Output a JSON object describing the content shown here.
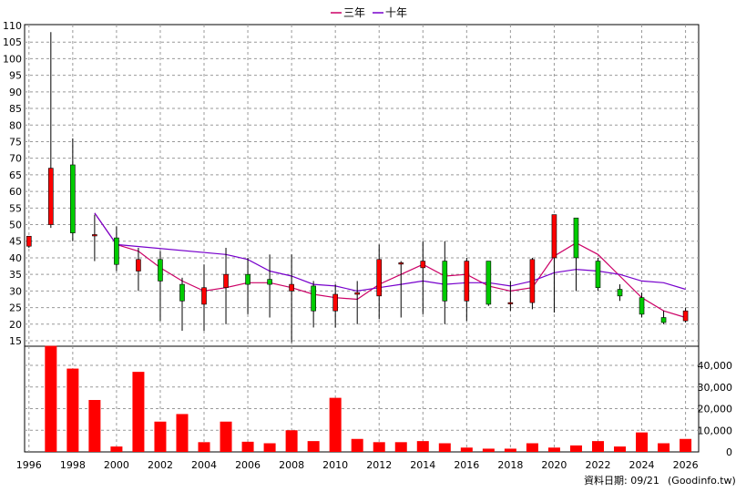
{
  "chart_data": {
    "type": "candlestick",
    "legend": {
      "placement": "top-center",
      "items": [
        {
          "label": "三年",
          "color": "#cc0066"
        },
        {
          "label": "十年",
          "color": "#7700cc"
        }
      ]
    },
    "x_axis": {
      "range": [
        1995.8,
        2026.6
      ],
      "ticks": [
        "1996",
        "1998",
        "2000",
        "2002",
        "2004",
        "2006",
        "2008",
        "2010",
        "2012",
        "2014",
        "2016",
        "2018",
        "2020",
        "2022",
        "2024",
        "2026"
      ]
    },
    "price_axis": {
      "range": [
        13,
        110
      ],
      "ticks": [
        "110",
        "105",
        "100",
        "95",
        "90",
        "85",
        "80",
        "75",
        "70",
        "65",
        "60",
        "55",
        "50",
        "45",
        "40",
        "35",
        "30",
        "25",
        "20",
        "15"
      ]
    },
    "volume_axis": {
      "range": [
        0,
        50000
      ],
      "ticks": [
        "40,000",
        "30,000",
        "20,000",
        "10,000",
        "0"
      ]
    },
    "grid": true,
    "up_color": "#ff0000",
    "down_color": "#00cc00",
    "candles": [
      {
        "year": 1996,
        "open": 43.5,
        "high": 46.5,
        "low": 43,
        "close": 46.5
      },
      {
        "year": 1997,
        "open": 50,
        "high": 108,
        "low": 49,
        "close": 67
      },
      {
        "year": 1998,
        "open": 68,
        "high": 76,
        "low": 45,
        "close": 47.5
      },
      {
        "year": 1999,
        "open": 47,
        "high": 53,
        "low": 39,
        "close": 47
      },
      {
        "year": 2000,
        "open": 46,
        "high": 49.5,
        "low": 36,
        "close": 38
      },
      {
        "year": 2001,
        "open": 36,
        "high": 43,
        "low": 30,
        "close": 39.5
      },
      {
        "year": 2002,
        "open": 39.5,
        "high": 42,
        "low": 21,
        "close": 33
      },
      {
        "year": 2003,
        "open": 32,
        "high": 34,
        "low": 18,
        "close": 27
      },
      {
        "year": 2004,
        "open": 26,
        "high": 38,
        "low": 18,
        "close": 31
      },
      {
        "year": 2005,
        "open": 31,
        "high": 43,
        "low": 20,
        "close": 35
      },
      {
        "year": 2006,
        "open": 35,
        "high": 40,
        "low": 23,
        "close": 32
      },
      {
        "year": 2007,
        "open": 33.5,
        "high": 41,
        "low": 22,
        "close": 32
      },
      {
        "year": 2008,
        "open": 30,
        "high": 41,
        "low": 14.5,
        "close": 32
      },
      {
        "year": 2009,
        "open": 31.5,
        "high": 33,
        "low": 19,
        "close": 24
      },
      {
        "year": 2010,
        "open": 24,
        "high": 32,
        "low": 19,
        "close": 29
      },
      {
        "year": 2011,
        "open": 29,
        "high": 33,
        "low": 20,
        "close": 29.5
      },
      {
        "year": 2012,
        "open": 28.5,
        "high": 44,
        "low": 21.5,
        "close": 39.5
      },
      {
        "year": 2013,
        "open": 38.5,
        "high": 39,
        "low": 22,
        "close": 38.5
      },
      {
        "year": 2014,
        "open": 37,
        "high": 45,
        "low": 23,
        "close": 39
      },
      {
        "year": 2015,
        "open": 39,
        "high": 45,
        "low": 20,
        "close": 27
      },
      {
        "year": 2016,
        "open": 27,
        "high": 40,
        "low": 21,
        "close": 39
      },
      {
        "year": 2017,
        "open": 39,
        "high": 39,
        "low": 25.5,
        "close": 26
      },
      {
        "year": 2018,
        "open": 26.5,
        "high": 33,
        "low": 24,
        "close": 26.5
      },
      {
        "year": 2019,
        "open": 26.5,
        "high": 40,
        "low": 24.5,
        "close": 39.5
      },
      {
        "year": 2020,
        "open": 40,
        "high": 53,
        "low": 23.5,
        "close": 53
      },
      {
        "year": 2021,
        "open": 52,
        "high": 52,
        "low": 30,
        "close": 40
      },
      {
        "year": 2022,
        "open": 39,
        "high": 40,
        "low": 30,
        "close": 31
      },
      {
        "year": 2023,
        "open": 30.5,
        "high": 32,
        "low": 27,
        "close": 28.5
      },
      {
        "year": 2024,
        "open": 28,
        "high": 29.5,
        "low": 22,
        "close": 23
      },
      {
        "year": 2025,
        "open": 22,
        "high": 24,
        "low": 20,
        "close": 20.5
      },
      {
        "year": 2026,
        "open": 21,
        "high": 25,
        "low": 20.5,
        "close": 24
      }
    ],
    "volume": [
      {
        "year": 1996,
        "value": 0
      },
      {
        "year": 1997,
        "value": 49000
      },
      {
        "year": 1998,
        "value": 38500
      },
      {
        "year": 1999,
        "value": 24000
      },
      {
        "year": 2000,
        "value": 2500
      },
      {
        "year": 2001,
        "value": 37000
      },
      {
        "year": 2002,
        "value": 14000
      },
      {
        "year": 2003,
        "value": 17500
      },
      {
        "year": 2004,
        "value": 4500
      },
      {
        "year": 2005,
        "value": 14000
      },
      {
        "year": 2006,
        "value": 4700
      },
      {
        "year": 2007,
        "value": 4000
      },
      {
        "year": 2008,
        "value": 10000
      },
      {
        "year": 2009,
        "value": 5000
      },
      {
        "year": 2010,
        "value": 25000
      },
      {
        "year": 2011,
        "value": 6000
      },
      {
        "year": 2012,
        "value": 4500
      },
      {
        "year": 2013,
        "value": 4500
      },
      {
        "year": 2014,
        "value": 5000
      },
      {
        "year": 2015,
        "value": 4000
      },
      {
        "year": 2016,
        "value": 2000
      },
      {
        "year": 2017,
        "value": 1500
      },
      {
        "year": 2018,
        "value": 1500
      },
      {
        "year": 2019,
        "value": 4000
      },
      {
        "year": 2020,
        "value": 2000
      },
      {
        "year": 2021,
        "value": 3000
      },
      {
        "year": 2022,
        "value": 5000
      },
      {
        "year": 2023,
        "value": 2500
      },
      {
        "year": 2024,
        "value": 9000
      },
      {
        "year": 2025,
        "value": 4000
      },
      {
        "year": 2026,
        "value": 6000
      }
    ],
    "series": [
      {
        "name": "三年",
        "color": "#cc0066",
        "points": [
          [
            1999,
            53.5
          ],
          [
            2000,
            44
          ],
          [
            2001,
            42
          ],
          [
            2002,
            37
          ],
          [
            2003,
            33
          ],
          [
            2004,
            30
          ],
          [
            2005,
            31
          ],
          [
            2006,
            32.5
          ],
          [
            2007,
            32.5
          ],
          [
            2008,
            31
          ],
          [
            2009,
            29
          ],
          [
            2010,
            28
          ],
          [
            2011,
            27.5
          ],
          [
            2012,
            32
          ],
          [
            2013,
            35
          ],
          [
            2014,
            38
          ],
          [
            2015,
            34.5
          ],
          [
            2016,
            35
          ],
          [
            2017,
            31.5
          ],
          [
            2018,
            30
          ],
          [
            2019,
            31
          ],
          [
            2020,
            40.5
          ],
          [
            2021,
            44.5
          ],
          [
            2022,
            41
          ],
          [
            2023,
            34.5
          ],
          [
            2024,
            28
          ],
          [
            2025,
            24
          ],
          [
            2026,
            22
          ]
        ]
      },
      {
        "name": "十年",
        "color": "#7700cc",
        "points": [
          [
            1999,
            53.5
          ],
          [
            2000,
            44
          ],
          [
            2005,
            41
          ],
          [
            2006,
            39.5
          ],
          [
            2007,
            36
          ],
          [
            2008,
            34.5
          ],
          [
            2009,
            32
          ],
          [
            2010,
            31.5
          ],
          [
            2011,
            30
          ],
          [
            2012,
            31
          ],
          [
            2013,
            32
          ],
          [
            2014,
            33
          ],
          [
            2015,
            32
          ],
          [
            2016,
            32.5
          ],
          [
            2017,
            32.5
          ],
          [
            2018,
            31.5
          ],
          [
            2019,
            33
          ],
          [
            2020,
            35.5
          ],
          [
            2021,
            36.5
          ],
          [
            2022,
            36
          ],
          [
            2023,
            35
          ],
          [
            2024,
            33
          ],
          [
            2025,
            32.5
          ],
          [
            2026,
            30.5
          ]
        ]
      }
    ]
  },
  "footer": {
    "date_label": "資料日期: 09/21",
    "source": "(Goodinfo.tw)"
  }
}
